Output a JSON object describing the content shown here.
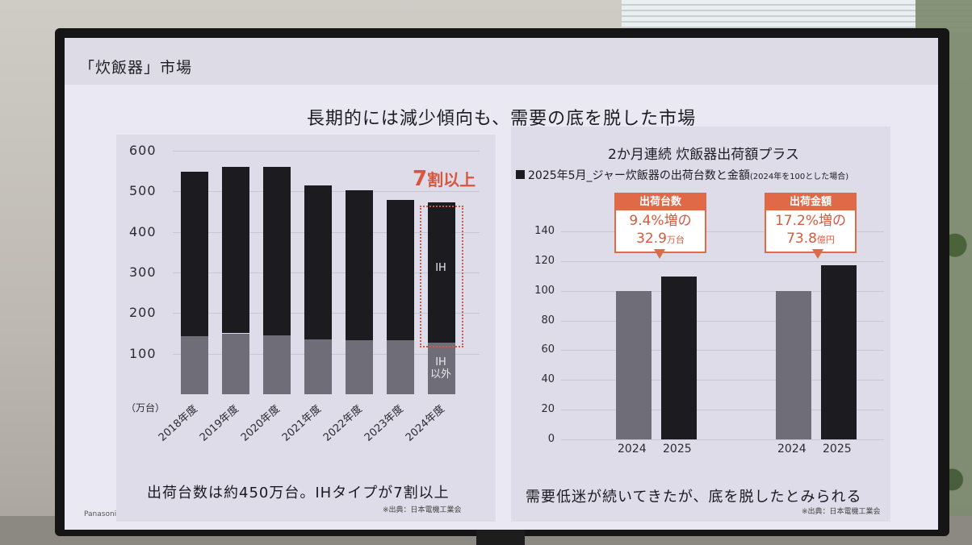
{
  "slide": {
    "title": "「炊飯器」市場",
    "headline": "長期的には減少傾向も、需要の底を脱した市場",
    "brand": "Panasonic"
  },
  "left_chart": {
    "unit": "（万台）",
    "callout": "割以上",
    "callout_number": "7",
    "ih_label": "IH",
    "non_ih_label_1": "IH",
    "non_ih_label_2": "以外",
    "caption": "出荷台数は約450万台。IHタイプが7割以上",
    "source": "※出典：日本電機工業会"
  },
  "right_chart": {
    "title": "2か月連続 炊飯器出荷額プラス",
    "subtitle": "2025年5月_ジャー炊飯器の出荷台数と金額",
    "subtitle_note": "(2024年を100とした場合)",
    "caption": "需要低迷が続いてきたが、底を脱したとみられる",
    "source": "※出典：日本電機工業会",
    "annotation_units": {
      "head": "出荷台数",
      "line1": "9.4%増の",
      "line2": "32.9",
      "line2_unit": "万台"
    },
    "annotation_amount": {
      "head": "出荷金額",
      "line1": "17.2%増の",
      "line2": "73.8",
      "line2_unit": "億円"
    }
  },
  "colors": {
    "dark_bar": "#1b1b20",
    "light_bar": "#6f6e78",
    "accent": "#e06a48"
  },
  "chart_data": [
    {
      "type": "bar",
      "stacked": true,
      "categories": [
        "2018年度",
        "2019年度",
        "2020年度",
        "2021年度",
        "2022年度",
        "2023年度",
        "2024年度"
      ],
      "series": [
        {
          "name": "IH以外",
          "values": [
            143,
            150,
            145,
            135,
            133,
            133,
            128
          ]
        },
        {
          "name": "IH",
          "values": [
            405,
            410,
            415,
            380,
            370,
            345,
            345
          ]
        }
      ],
      "ylabel": "（万台）",
      "yticks": [
        "600",
        "500",
        "400",
        "300",
        "200",
        "100"
      ],
      "ylim": [
        0,
        600
      ],
      "annotation": "7割以上"
    },
    {
      "type": "bar",
      "title": "2か月連続 炊飯器出荷額プラス",
      "groups": [
        {
          "name": "出荷台数",
          "categories": [
            "2024",
            "2025"
          ],
          "values": [
            100,
            109.4
          ]
        },
        {
          "name": "出荷金額",
          "categories": [
            "2024",
            "2025"
          ],
          "values": [
            100,
            117.2
          ]
        }
      ],
      "yticks": [
        "140",
        "120",
        "100",
        "80",
        "60",
        "40",
        "20",
        "0"
      ],
      "ylim": [
        0,
        140
      ]
    }
  ]
}
